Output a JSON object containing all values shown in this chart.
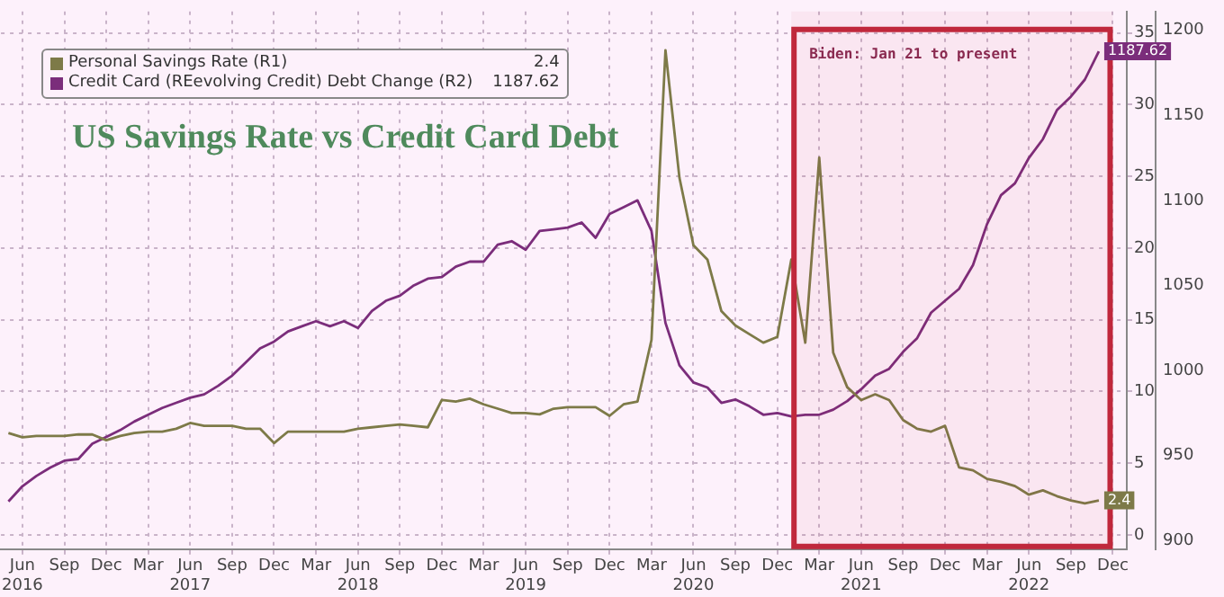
{
  "chart_data": {
    "type": "line",
    "title": "US Savings Rate vs Credit Card Debt",
    "x": [
      "2016-05",
      "2016-06",
      "2016-07",
      "2016-08",
      "2016-09",
      "2016-10",
      "2016-11",
      "2016-12",
      "2017-01",
      "2017-02",
      "2017-03",
      "2017-04",
      "2017-05",
      "2017-06",
      "2017-07",
      "2017-08",
      "2017-09",
      "2017-10",
      "2017-11",
      "2017-12",
      "2018-01",
      "2018-02",
      "2018-03",
      "2018-04",
      "2018-05",
      "2018-06",
      "2018-07",
      "2018-08",
      "2018-09",
      "2018-10",
      "2018-11",
      "2018-12",
      "2019-01",
      "2019-02",
      "2019-03",
      "2019-04",
      "2019-05",
      "2019-06",
      "2019-07",
      "2019-08",
      "2019-09",
      "2019-10",
      "2019-11",
      "2019-12",
      "2020-01",
      "2020-02",
      "2020-03",
      "2020-04",
      "2020-05",
      "2020-06",
      "2020-07",
      "2020-08",
      "2020-09",
      "2020-10",
      "2020-11",
      "2020-12",
      "2021-01",
      "2021-02",
      "2021-03",
      "2021-04",
      "2021-05",
      "2021-06",
      "2021-07",
      "2021-08",
      "2021-09",
      "2021-10",
      "2021-11",
      "2021-12",
      "2022-01",
      "2022-02",
      "2022-03",
      "2022-04",
      "2022-05",
      "2022-06",
      "2022-07",
      "2022-08",
      "2022-09",
      "2022-10",
      "2022-11"
    ],
    "series": [
      {
        "name": "Personal Savings Rate (R1)",
        "color": "#7d7a48",
        "axis": "y",
        "values": [
          7.1,
          6.8,
          6.9,
          6.9,
          6.9,
          7.0,
          7.0,
          6.6,
          6.9,
          7.1,
          7.2,
          7.2,
          7.4,
          7.8,
          7.6,
          7.6,
          7.6,
          7.4,
          7.4,
          6.4,
          7.2,
          7.2,
          7.2,
          7.2,
          7.2,
          7.4,
          7.5,
          7.6,
          7.7,
          7.6,
          7.5,
          9.4,
          9.3,
          9.5,
          9.1,
          8.8,
          8.5,
          8.5,
          8.4,
          8.8,
          8.9,
          8.9,
          8.9,
          8.3,
          9.1,
          9.3,
          13.6,
          33.8,
          24.9,
          20.2,
          19.2,
          15.6,
          14.6,
          14.0,
          13.4,
          13.8,
          19.2,
          13.4,
          26.3,
          12.7,
          10.3,
          9.4,
          9.8,
          9.4,
          8.0,
          7.4,
          7.2,
          7.6,
          4.7,
          4.5,
          3.9,
          3.7,
          3.4,
          2.8,
          3.1,
          2.7,
          2.4,
          2.2,
          2.4
        ],
        "value_labels": [
          null,
          null,
          null,
          null,
          null,
          null,
          null,
          null,
          null,
          null,
          null,
          null,
          null,
          null,
          null,
          null,
          null,
          null,
          null,
          null,
          null,
          null,
          null,
          null,
          null,
          null,
          null,
          null,
          null,
          null,
          null,
          null,
          null,
          null,
          null,
          null,
          null,
          null,
          null,
          null,
          null,
          null,
          null,
          null,
          null,
          null,
          null,
          null,
          null,
          null,
          null,
          null,
          null,
          null,
          null,
          null,
          null,
          null,
          null,
          null,
          null,
          null,
          null,
          null,
          null,
          null,
          null,
          null,
          null,
          null,
          null,
          null,
          null,
          null,
          null,
          null,
          null,
          null,
          "2.4"
        ]
      },
      {
        "name": "Credit Card (REevolving Credit) Debt Change (R2)",
        "color": "#7b2d7b",
        "axis": "y2",
        "values": [
          923,
          932,
          938,
          943,
          947,
          948,
          957,
          961,
          965,
          970,
          974,
          978,
          981,
          984,
          986,
          991,
          997,
          1005,
          1013,
          1017,
          1023,
          1026,
          1029,
          1026,
          1029,
          1025,
          1035,
          1041,
          1044,
          1050,
          1054,
          1055,
          1061,
          1064,
          1064,
          1074,
          1076,
          1071,
          1082,
          1083,
          1084,
          1087,
          1078,
          1092,
          1096,
          1100,
          1082,
          1028,
          1003,
          993,
          990,
          981,
          983,
          979,
          974,
          975,
          973,
          974,
          974,
          977,
          982,
          989,
          997,
          1001,
          1011,
          1019,
          1034,
          1041,
          1048,
          1062,
          1086,
          1103,
          1110,
          1125,
          1136,
          1153,
          1161,
          1171,
          1187.62
        ],
        "value_labels": [
          null,
          null,
          null,
          null,
          null,
          null,
          null,
          null,
          null,
          null,
          null,
          null,
          null,
          null,
          null,
          null,
          null,
          null,
          null,
          null,
          null,
          null,
          null,
          null,
          null,
          null,
          null,
          null,
          null,
          null,
          null,
          null,
          null,
          null,
          null,
          null,
          null,
          null,
          null,
          null,
          null,
          null,
          null,
          null,
          null,
          null,
          null,
          null,
          null,
          null,
          null,
          null,
          null,
          null,
          null,
          null,
          null,
          null,
          null,
          null,
          null,
          null,
          null,
          null,
          null,
          null,
          null,
          null,
          null,
          null,
          null,
          null,
          null,
          null,
          null,
          null,
          null,
          null,
          "1187.62"
        ]
      }
    ],
    "xlim": [
      "2016-04-15",
      "2023-01-01"
    ],
    "xticks": [
      {
        "value": "2016-06",
        "label": "Jun\n2016"
      },
      {
        "value": "2016-09",
        "label": "Sep"
      },
      {
        "value": "2016-12",
        "label": "Dec"
      },
      {
        "value": "2017-03",
        "label": "Mar"
      },
      {
        "value": "2017-06",
        "label": "Jun\n2017"
      },
      {
        "value": "2017-09",
        "label": "Sep"
      },
      {
        "value": "2017-12",
        "label": "Dec"
      },
      {
        "value": "2018-03",
        "label": "Mar"
      },
      {
        "value": "2018-06",
        "label": "Jun\n2018"
      },
      {
        "value": "2018-09",
        "label": "Sep"
      },
      {
        "value": "2018-12",
        "label": "Dec"
      },
      {
        "value": "2019-03",
        "label": "Mar"
      },
      {
        "value": "2019-06",
        "label": "Jun\n2019"
      },
      {
        "value": "2019-09",
        "label": "Sep"
      },
      {
        "value": "2019-12",
        "label": "Dec"
      },
      {
        "value": "2020-03",
        "label": "Mar"
      },
      {
        "value": "2020-06",
        "label": "Jun\n2020"
      },
      {
        "value": "2020-09",
        "label": "Sep"
      },
      {
        "value": "2020-12",
        "label": "Dec"
      },
      {
        "value": "2021-03",
        "label": "Mar"
      },
      {
        "value": "2021-06",
        "label": "Jun\n2021"
      },
      {
        "value": "2021-09",
        "label": "Sep"
      },
      {
        "value": "2021-12",
        "label": "Dec"
      },
      {
        "value": "2022-03",
        "label": "Mar"
      },
      {
        "value": "2022-06",
        "label": "Jun\n2022"
      },
      {
        "value": "2022-09",
        "label": "Sep"
      },
      {
        "value": "2022-12",
        "label": "Dec"
      }
    ],
    "ylim": [
      -1,
      36.5
    ],
    "yticks": [
      0,
      5,
      10,
      15,
      20,
      25,
      30,
      35
    ],
    "y2lim": [
      895,
      1211
    ],
    "y2ticks": [
      900,
      950,
      1000,
      1050,
      1100,
      1150,
      1200
    ],
    "bands": [
      {
        "axis": "x",
        "from": "2021-01",
        "to": "2022-12",
        "label": "Biden: Jan 21 to present",
        "color": "#c0283c"
      }
    ],
    "grid": true,
    "legend": "top left",
    "marker": "none",
    "line_style": "solid"
  }
}
